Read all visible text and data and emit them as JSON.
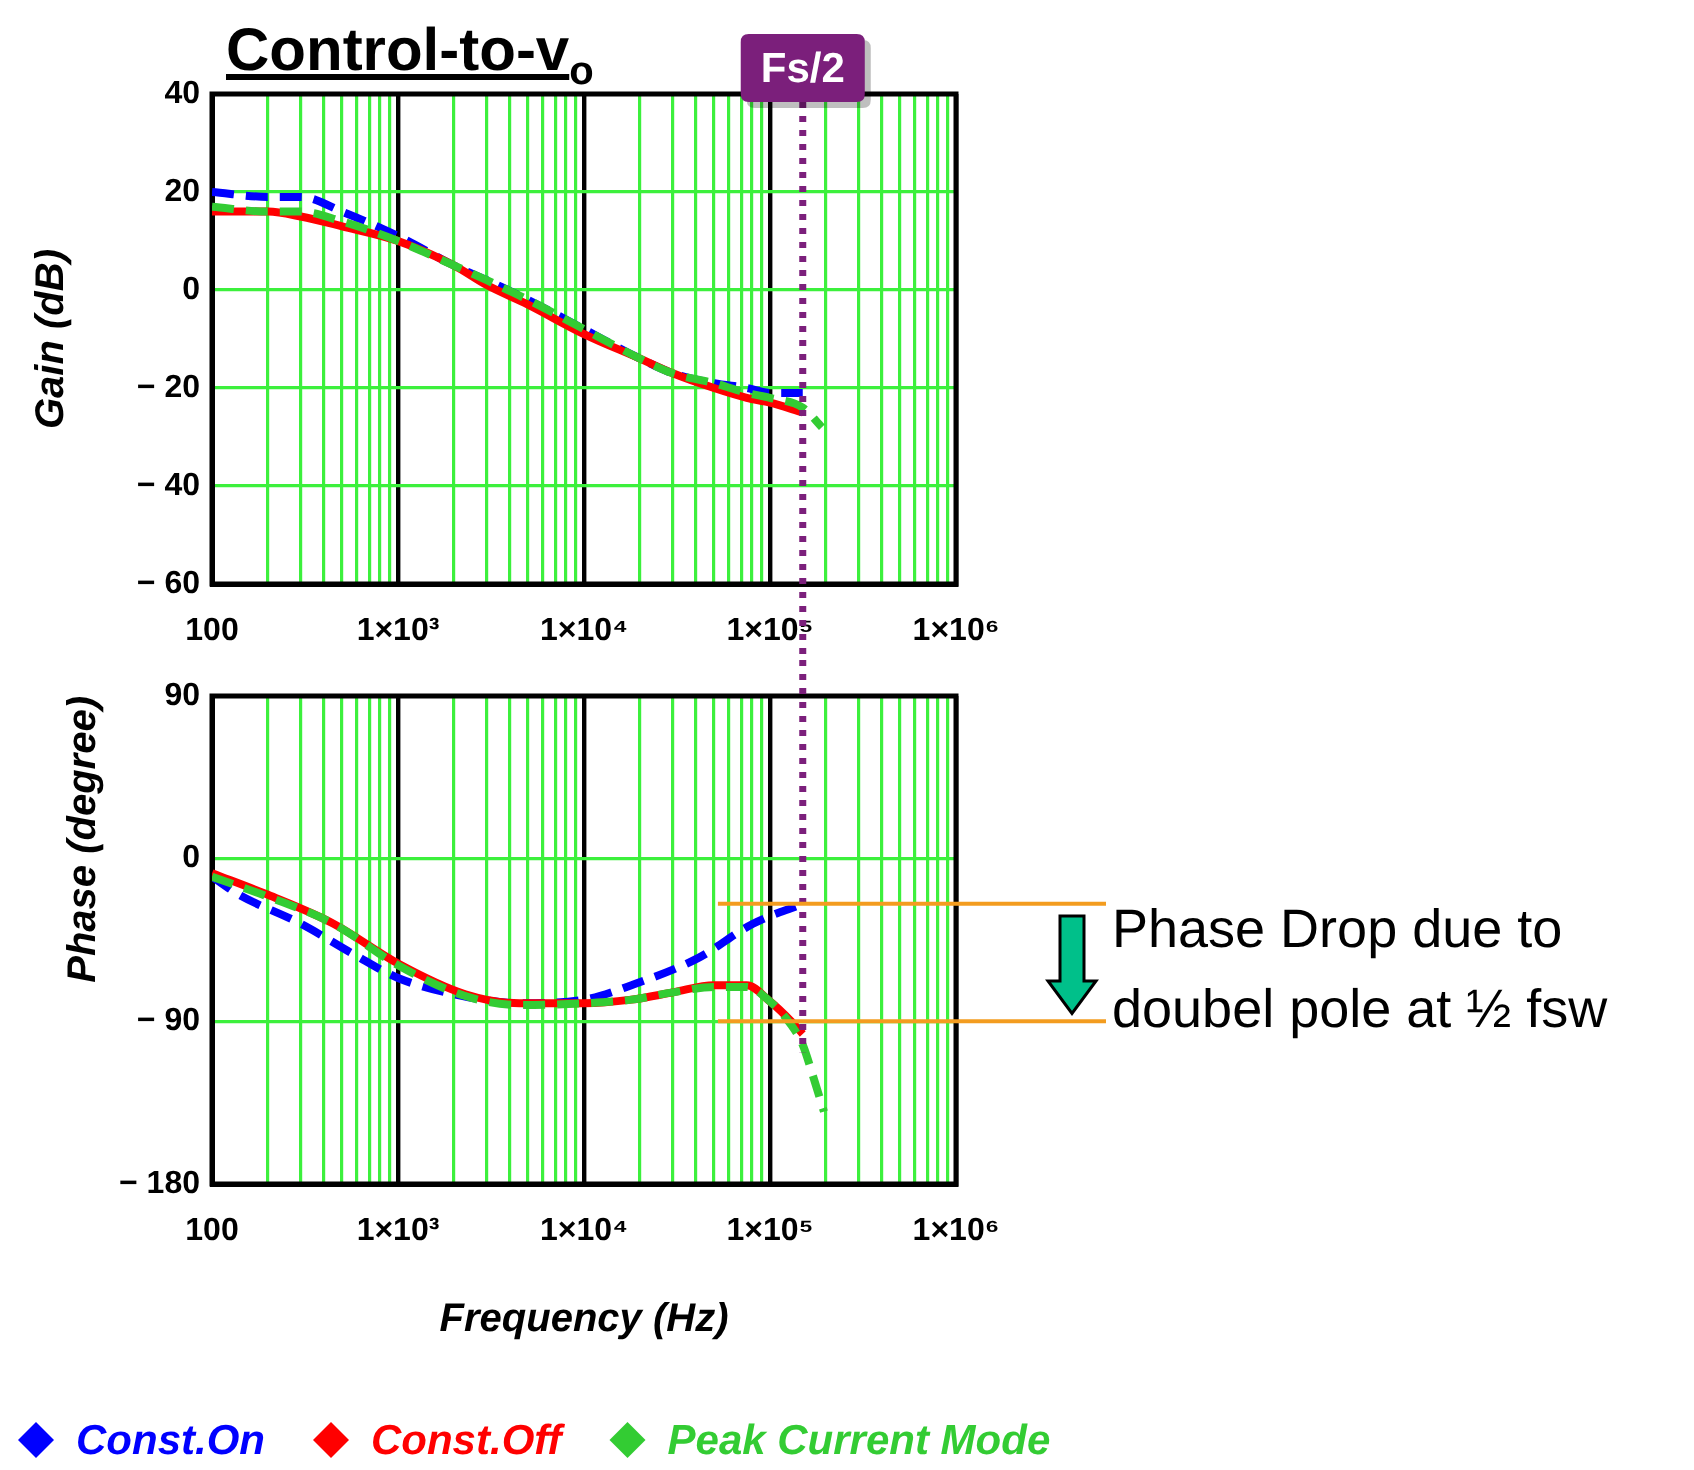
{
  "chart_data": [
    {
      "type": "line",
      "title": "Control-to-v$_{o}$",
      "ylabel": "Gain (dB)",
      "log": "x",
      "grid": true,
      "xlim": [
        100,
        1000000
      ],
      "ylim": [
        -60,
        40
      ],
      "xticks": [
        100,
        {
          "value": 200,
          "label": null
        },
        {
          "value": 300,
          "label": null
        },
        {
          "value": 400,
          "label": null
        },
        {
          "value": 500,
          "label": null
        },
        {
          "value": 600,
          "label": null
        },
        {
          "value": 700,
          "label": null
        },
        {
          "value": 800,
          "label": null
        },
        {
          "value": 900,
          "label": null
        },
        {
          "value": 1000,
          "label": "1×10³"
        },
        {
          "value": 2000,
          "label": null
        },
        {
          "value": 3000,
          "label": null
        },
        {
          "value": 4000,
          "label": null
        },
        {
          "value": 5000,
          "label": null
        },
        {
          "value": 6000,
          "label": null
        },
        {
          "value": 7000,
          "label": null
        },
        {
          "value": 8000,
          "label": null
        },
        {
          "value": 9000,
          "label": null
        },
        {
          "value": 10000,
          "label": "1×10⁴"
        },
        {
          "value": 20000,
          "label": null
        },
        {
          "value": 30000,
          "label": null
        },
        {
          "value": 40000,
          "label": null
        },
        {
          "value": 50000,
          "label": null
        },
        {
          "value": 60000,
          "label": null
        },
        {
          "value": 70000,
          "label": null
        },
        {
          "value": 80000,
          "label": null
        },
        {
          "value": 90000,
          "label": null
        },
        {
          "value": 100000,
          "label": "1×10⁵"
        },
        {
          "value": 200000,
          "label": null
        },
        {
          "value": 300000,
          "label": null
        },
        {
          "value": 400000,
          "label": null
        },
        {
          "value": 500000,
          "label": null
        },
        {
          "value": 600000,
          "label": null
        },
        {
          "value": 700000,
          "label": null
        },
        {
          "value": 800000,
          "label": null
        },
        {
          "value": 900000,
          "label": null
        },
        {
          "value": 1000000,
          "label": "1×10⁶"
        }
      ],
      "yticks": [
        {
          "value": -60,
          "label": "− 60"
        },
        {
          "value": -40,
          "label": "− 40"
        },
        {
          "value": -20,
          "label": "− 20"
        },
        0,
        20,
        40
      ],
      "ref_lines": [
        {
          "axis": "x",
          "value": 150000,
          "label": "Fs/2",
          "color": "#7b1f7b",
          "line_style": "dotted"
        }
      ],
      "series": [
        {
          "color": "#0000ff",
          "line_style": "dashed",
          "x": [
            100,
            200,
            300,
            500,
            1000,
            2000,
            3000,
            5000,
            10000,
            20000,
            30000,
            50000,
            75000,
            100000,
            150000
          ],
          "values": [
            20,
            19,
            19,
            16,
            11,
            5,
            2,
            -2,
            -8,
            -14,
            -17,
            -19,
            -20,
            -21,
            -21
          ]
        },
        {
          "color": "#ff0000",
          "line_style": "solid",
          "x": [
            100,
            200,
            300,
            500,
            1000,
            2000,
            3000,
            5000,
            10000,
            20000,
            30000,
            50000,
            75000,
            100000,
            150000
          ],
          "values": [
            16,
            16,
            15,
            13,
            10,
            5,
            1,
            -3,
            -9,
            -14,
            -17,
            -20,
            -22,
            -23,
            -25
          ]
        },
        {
          "color": "#33cc33",
          "line_style": "dashed",
          "x": [
            100,
            200,
            300,
            500,
            1000,
            2000,
            3000,
            5000,
            10000,
            20000,
            30000,
            50000,
            75000,
            100000,
            150000,
            190000
          ],
          "values": [
            17,
            16,
            16,
            14,
            10,
            5,
            2,
            -2,
            -8,
            -14,
            -17,
            -19,
            -21,
            -22,
            -24,
            -28
          ]
        }
      ]
    },
    {
      "type": "line",
      "xlabel": "Frequency (Hz)",
      "ylabel": "Phase (degree)",
      "log": "x",
      "grid": true,
      "legend": "bottom",
      "xlim": [
        100,
        1000000
      ],
      "ylim": [
        -180,
        90
      ],
      "xticks": [
        100,
        {
          "value": 200,
          "label": null
        },
        {
          "value": 300,
          "label": null
        },
        {
          "value": 400,
          "label": null
        },
        {
          "value": 500,
          "label": null
        },
        {
          "value": 600,
          "label": null
        },
        {
          "value": 700,
          "label": null
        },
        {
          "value": 800,
          "label": null
        },
        {
          "value": 900,
          "label": null
        },
        {
          "value": 1000,
          "label": "1×10³"
        },
        {
          "value": 2000,
          "label": null
        },
        {
          "value": 3000,
          "label": null
        },
        {
          "value": 4000,
          "label": null
        },
        {
          "value": 5000,
          "label": null
        },
        {
          "value": 6000,
          "label": null
        },
        {
          "value": 7000,
          "label": null
        },
        {
          "value": 8000,
          "label": null
        },
        {
          "value": 9000,
          "label": null
        },
        {
          "value": 10000,
          "label": "1×10⁴"
        },
        {
          "value": 20000,
          "label": null
        },
        {
          "value": 30000,
          "label": null
        },
        {
          "value": 40000,
          "label": null
        },
        {
          "value": 50000,
          "label": null
        },
        {
          "value": 60000,
          "label": null
        },
        {
          "value": 70000,
          "label": null
        },
        {
          "value": 80000,
          "label": null
        },
        {
          "value": 90000,
          "label": null
        },
        {
          "value": 100000,
          "label": "1×10⁵"
        },
        {
          "value": 200000,
          "label": null
        },
        {
          "value": 300000,
          "label": null
        },
        {
          "value": 400000,
          "label": null
        },
        {
          "value": 500000,
          "label": null
        },
        {
          "value": 600000,
          "label": null
        },
        {
          "value": 700000,
          "label": null
        },
        {
          "value": 800000,
          "label": null
        },
        {
          "value": 900000,
          "label": null
        },
        {
          "value": 1000000,
          "label": "1×10⁶"
        }
      ],
      "yticks": [
        {
          "value": -180,
          "label": "− 180"
        },
        {
          "value": -90,
          "label": "− 90"
        },
        0,
        90
      ],
      "ref_lines": [
        {
          "axis": "x",
          "value": 150000,
          "color": "#7b1f7b",
          "line_style": "dotted"
        },
        {
          "axis": "y",
          "value": -25,
          "color": "#f39c1f"
        },
        {
          "axis": "y",
          "value": -90,
          "color": "#f39c1f"
        }
      ],
      "annotations": [
        "Phase Drop due to doubel pole at ½ fsw"
      ],
      "series": [
        {
          "name": "Const.On",
          "color": "#0000ff",
          "line_style": "dashed",
          "x": [
            100,
            140,
            300,
            580,
            1000,
            2000,
            4500,
            10000,
            18000,
            41000,
            81000,
            150000
          ],
          "values": [
            -10,
            -20,
            -36,
            -53,
            -66,
            -75,
            -80,
            -78,
            -70,
            -55,
            -36,
            -25
          ]
        },
        {
          "name": "Const.Off",
          "color": "#ff0000",
          "line_style": "solid",
          "x": [
            100,
            200,
            450,
            1000,
            2300,
            4500,
            10000,
            18000,
            30000,
            50000,
            75000,
            100000,
            130000,
            150000
          ],
          "values": [
            -8,
            -20,
            -36,
            -58,
            -75,
            -80,
            -80,
            -78,
            -74,
            -70,
            -70,
            -79,
            -90,
            -97
          ]
        },
        {
          "name": "Peak Current Mode",
          "color": "#33cc33",
          "line_style": "dashed",
          "x": [
            100,
            200,
            450,
            1000,
            2300,
            4500,
            10000,
            18000,
            30000,
            50000,
            75000,
            100000,
            130000,
            150000,
            170000,
            195000
          ],
          "values": [
            -10,
            -21,
            -36,
            -59,
            -76,
            -81,
            -80,
            -78,
            -74,
            -71,
            -71,
            -79,
            -92,
            -103,
            -120,
            -140
          ]
        }
      ]
    }
  ]
}
